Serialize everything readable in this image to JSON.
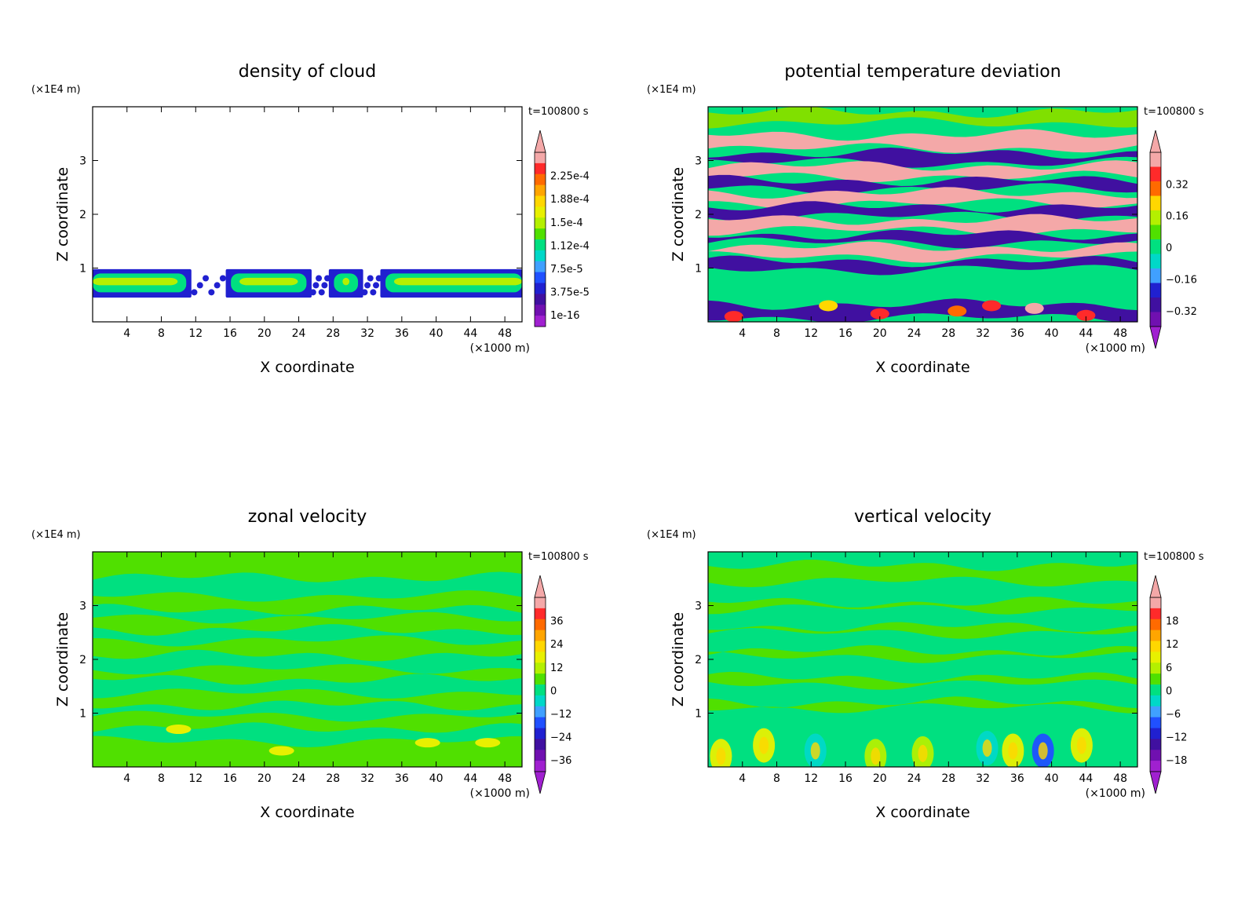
{
  "chart_data": [
    {
      "type": "heatmap",
      "title": "density of cloud",
      "xlabel": "X coordinate",
      "ylabel": "Z coordinate",
      "x_unit": "(×1000 m)",
      "y_unit": "(×1E4 m)",
      "time_label": "t=100800 s",
      "xlim": [
        0,
        50
      ],
      "ylim": [
        0,
        4
      ],
      "x_ticks": [
        "4",
        "8",
        "12",
        "16",
        "20",
        "24",
        "28",
        "32",
        "36",
        "40",
        "44",
        "48"
      ],
      "y_ticks": [
        "1",
        "2",
        "3"
      ],
      "colorbar": {
        "labels": [
          "2.25e-4",
          "1.88e-4",
          "1.5e-4",
          "1.12e-4",
          "7.5e-5",
          "3.75e-5",
          "1e-16"
        ],
        "colors": [
          "#f4a8a8",
          "#ff2a2a",
          "#ff6a00",
          "#ffa500",
          "#ffd700",
          "#e8f000",
          "#b4f000",
          "#50e000",
          "#00e080",
          "#00d8c8",
          "#40a0ff",
          "#2050ff",
          "#2020d0",
          "#4010a0",
          "#7010b0",
          "#a020d0"
        ],
        "upper_triangle": "#f4a8a8",
        "lower_triangle": null
      },
      "field": {
        "background": "#ffffff",
        "layers": [
          {
            "name": "cloud band",
            "z_range": [
              0.45,
              0.98
            ],
            "color": "#2020d0"
          },
          {
            "name": "inner",
            "z_range": [
              0.55,
              0.9
            ],
            "color": "#00e080"
          },
          {
            "name": "core",
            "z_range": [
              0.68,
              0.82
            ],
            "color": "#b4f000"
          }
        ],
        "gaps_x": [
          [
            11.5,
            15.5
          ],
          [
            25.5,
            27.5
          ],
          [
            31.5,
            33.5
          ]
        ]
      }
    },
    {
      "type": "heatmap",
      "title": "potential temperature deviation",
      "xlabel": "X coordinate",
      "ylabel": "Z coordinate",
      "x_unit": "(×1000 m)",
      "y_unit": "(×1E4 m)",
      "time_label": "t=100800 s",
      "xlim": [
        0,
        50
      ],
      "ylim": [
        0,
        4
      ],
      "x_ticks": [
        "4",
        "8",
        "12",
        "16",
        "20",
        "24",
        "28",
        "32",
        "36",
        "40",
        "44",
        "48"
      ],
      "y_ticks": [
        "1",
        "2",
        "3"
      ],
      "colorbar": {
        "labels": [
          "0.32",
          "0.16",
          "0",
          "−0.16",
          "−0.32"
        ],
        "colors": [
          "#f4a8a8",
          "#ff2a2a",
          "#ff6a00",
          "#ffd700",
          "#b4f000",
          "#50e000",
          "#00e080",
          "#00d8c8",
          "#40a0ff",
          "#2020d0",
          "#4010a0",
          "#7010b0"
        ],
        "upper_triangle": "#f4a8a8",
        "lower_triangle": "#a020d0"
      },
      "field": {
        "background": "#00e080",
        "stripes": [
          {
            "z": 3.8,
            "h": 0.2,
            "color": "#80e000"
          },
          {
            "z": 3.35,
            "h": 0.25,
            "color": "#f4a8a8"
          },
          {
            "z": 3.05,
            "h": 0.18,
            "color": "#4010a0"
          },
          {
            "z": 2.8,
            "h": 0.2,
            "color": "#f4a8a8"
          },
          {
            "z": 2.55,
            "h": 0.15,
            "color": "#4010a0"
          },
          {
            "z": 2.3,
            "h": 0.2,
            "color": "#f4a8a8"
          },
          {
            "z": 2.05,
            "h": 0.18,
            "color": "#4010a0"
          },
          {
            "z": 1.8,
            "h": 0.2,
            "color": "#f4a8a8"
          },
          {
            "z": 1.55,
            "h": 0.15,
            "color": "#4010a0"
          },
          {
            "z": 1.3,
            "h": 0.18,
            "color": "#f4a8a8"
          },
          {
            "z": 1.05,
            "h": 0.15,
            "color": "#4010a0"
          },
          {
            "z": 0.2,
            "h": 0.25,
            "color": "#4010a0"
          }
        ]
      }
    },
    {
      "type": "heatmap",
      "title": "zonal velocity",
      "xlabel": "X coordinate",
      "ylabel": "Z coordinate",
      "x_unit": "(×1000 m)",
      "y_unit": "(×1E4 m)",
      "time_label": "t=100800 s",
      "xlim": [
        0,
        50
      ],
      "ylim": [
        0,
        4
      ],
      "x_ticks": [
        "4",
        "8",
        "12",
        "16",
        "20",
        "24",
        "28",
        "32",
        "36",
        "40",
        "44",
        "48"
      ],
      "y_ticks": [
        "1",
        "2",
        "3"
      ],
      "colorbar": {
        "labels": [
          "36",
          "24",
          "12",
          "0",
          "−12",
          "−24",
          "−36"
        ],
        "colors": [
          "#f4a8a8",
          "#ff2a2a",
          "#ff6a00",
          "#ffa500",
          "#ffd700",
          "#e8f000",
          "#b4f000",
          "#50e000",
          "#00e080",
          "#00d8c8",
          "#40a0ff",
          "#2050ff",
          "#2020d0",
          "#4010a0",
          "#7010b0",
          "#a020d0"
        ],
        "upper_triangle": "#f4a8a8",
        "lower_triangle": "#a020d0"
      },
      "field": {
        "background": "#50e000",
        "stripes": [
          {
            "z": 3.35,
            "h": 0.35,
            "color": "#00e080"
          },
          {
            "z": 2.85,
            "h": 0.15,
            "color": "#00e080"
          },
          {
            "z": 2.45,
            "h": 0.2,
            "color": "#00e080"
          },
          {
            "z": 1.95,
            "h": 0.25,
            "color": "#00e080"
          },
          {
            "z": 1.5,
            "h": 0.25,
            "color": "#00e080"
          },
          {
            "z": 1.05,
            "h": 0.2,
            "color": "#00e080"
          },
          {
            "z": 0.6,
            "h": 0.25,
            "color": "#00e080"
          }
        ]
      }
    },
    {
      "type": "heatmap",
      "title": "vertical velocity",
      "xlabel": "X coordinate",
      "ylabel": "Z coordinate",
      "x_unit": "(×1000 m)",
      "y_unit": "(×1E4 m)",
      "time_label": "t=100800 s",
      "xlim": [
        0,
        50
      ],
      "ylim": [
        0,
        4
      ],
      "x_ticks": [
        "4",
        "8",
        "12",
        "16",
        "20",
        "24",
        "28",
        "32",
        "36",
        "40",
        "44",
        "48"
      ],
      "y_ticks": [
        "1",
        "2",
        "3"
      ],
      "colorbar": {
        "labels": [
          "18",
          "12",
          "6",
          "0",
          "−6",
          "−12",
          "−18"
        ],
        "colors": [
          "#f4a8a8",
          "#ff2a2a",
          "#ff6a00",
          "#ffa500",
          "#ffd700",
          "#e8f000",
          "#b4f000",
          "#50e000",
          "#00e080",
          "#00d8c8",
          "#40a0ff",
          "#2050ff",
          "#2020d0",
          "#4010a0",
          "#7010b0",
          "#a020d0"
        ],
        "upper_triangle": "#f4a8a8",
        "lower_triangle": "#a020d0"
      },
      "field": {
        "background": "#00e080",
        "stripes": [
          {
            "z": 3.6,
            "h": 0.3,
            "color": "#50e000"
          },
          {
            "z": 3.0,
            "h": 0.12,
            "color": "#50e000"
          },
          {
            "z": 2.55,
            "h": 0.12,
            "color": "#50e000"
          },
          {
            "z": 2.1,
            "h": 0.12,
            "color": "#50e000"
          },
          {
            "z": 1.6,
            "h": 0.12,
            "color": "#50e000"
          },
          {
            "z": 1.15,
            "h": 0.1,
            "color": "#50e000"
          }
        ],
        "cells": [
          {
            "x": 1.5,
            "z": 0.2,
            "color": "#e8f000"
          },
          {
            "x": 6.5,
            "z": 0.4,
            "color": "#e8f000"
          },
          {
            "x": 12.5,
            "z": 0.3,
            "color": "#00d8c8"
          },
          {
            "x": 19.5,
            "z": 0.2,
            "color": "#b4f000"
          },
          {
            "x": 25.0,
            "z": 0.25,
            "color": "#b4f000"
          },
          {
            "x": 32.5,
            "z": 0.35,
            "color": "#00d8c8"
          },
          {
            "x": 35.5,
            "z": 0.3,
            "color": "#e8f000"
          },
          {
            "x": 39.0,
            "z": 0.3,
            "color": "#2050ff"
          },
          {
            "x": 43.5,
            "z": 0.4,
            "color": "#e8f000"
          }
        ]
      }
    }
  ]
}
